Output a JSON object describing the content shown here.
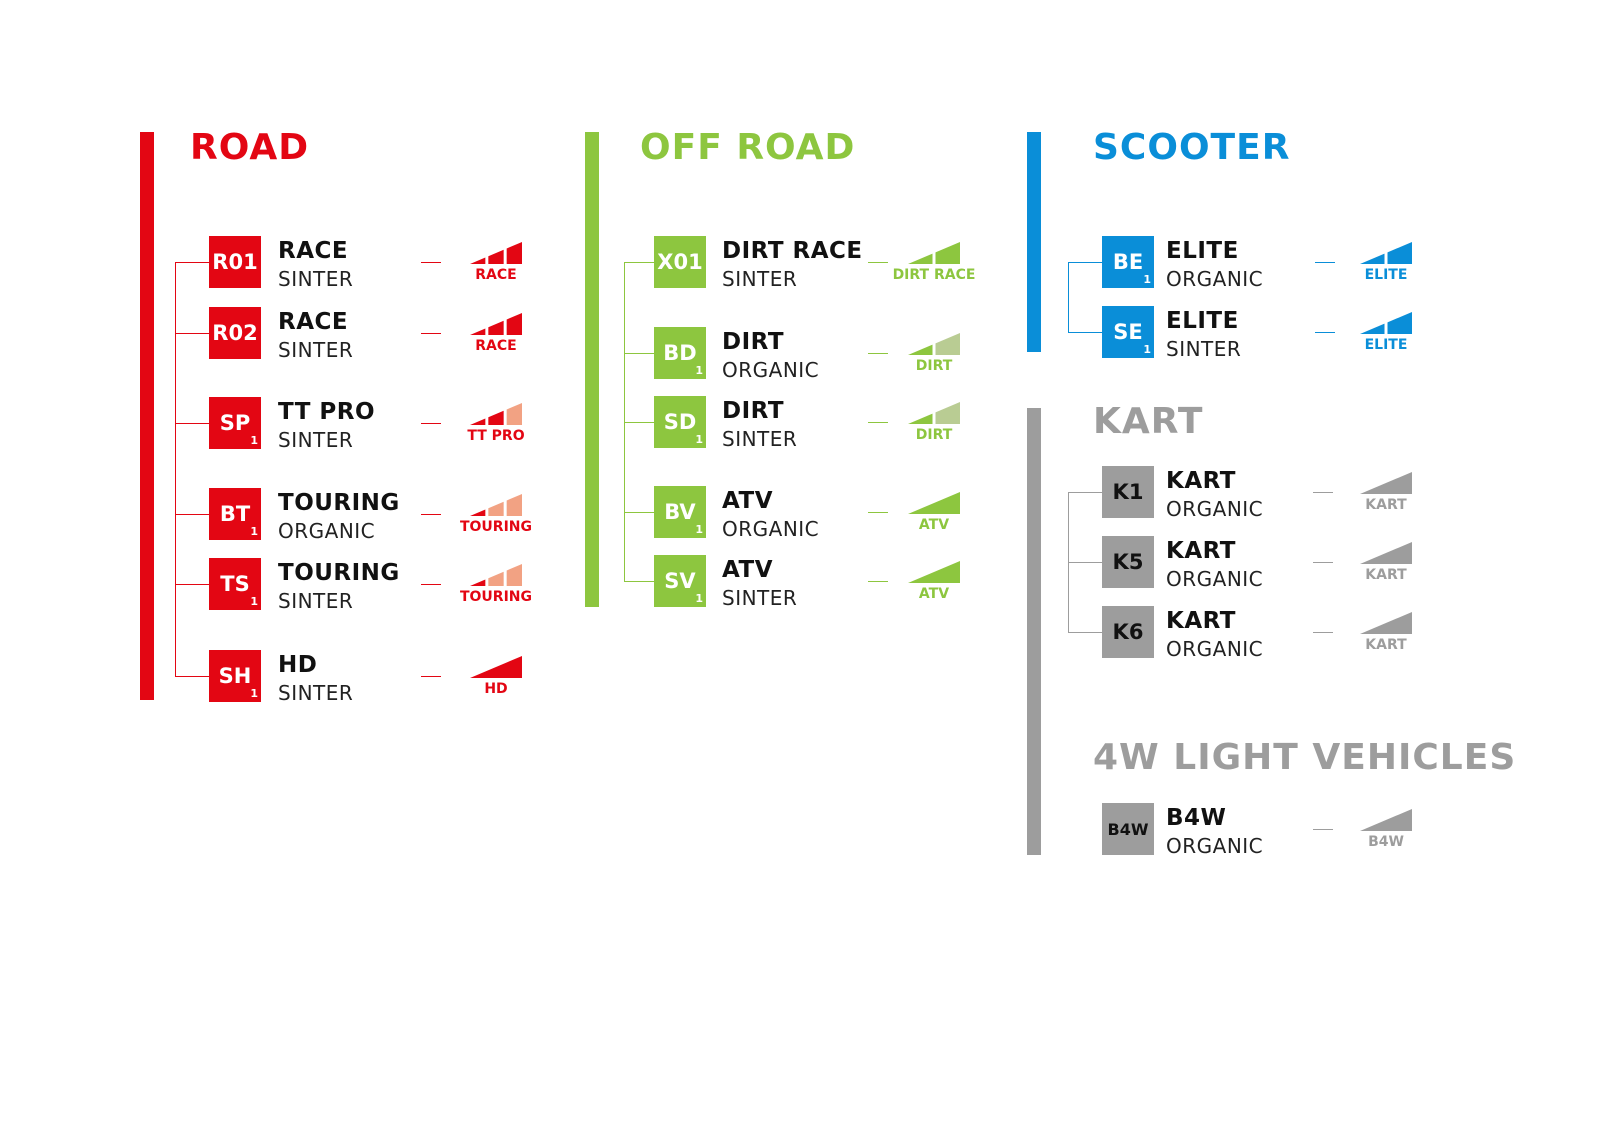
{
  "colors": {
    "road": "#e30613",
    "road_light": "#f2a283",
    "offroad": "#8dc63f",
    "offroad_light": "#b9cc93",
    "scooter": "#0a8ed8",
    "kart": "#9d9d9d"
  },
  "sections": [
    {
      "id": "road",
      "title": "ROAD",
      "color": "#e30613",
      "light": "#f2a283",
      "items": [
        {
          "code": "R01",
          "sub": "",
          "name": "RACE",
          "material": "SINTER",
          "level_label": "RACE",
          "segments": 3,
          "filled": 3
        },
        {
          "code": "R02",
          "sub": "",
          "name": "RACE",
          "material": "SINTER",
          "level_label": "RACE",
          "segments": 3,
          "filled": 3
        },
        {
          "code": "SP",
          "sub": "1",
          "name": "TT PRO",
          "material": "SINTER",
          "level_label": "TT PRO",
          "segments": 3,
          "filled": 2
        },
        {
          "code": "BT",
          "sub": "1",
          "name": "TOURING",
          "material": "ORGANIC",
          "level_label": "TOURING",
          "segments": 3,
          "filled": 1
        },
        {
          "code": "TS",
          "sub": "1",
          "name": "TOURING",
          "material": "SINTER",
          "level_label": "TOURING",
          "segments": 3,
          "filled": 1
        },
        {
          "code": "SH",
          "sub": "1",
          "name": "HD",
          "material": "SINTER",
          "level_label": "HD",
          "segments": 1,
          "filled": 1
        }
      ]
    },
    {
      "id": "offroad",
      "title": "OFF ROAD",
      "color": "#8dc63f",
      "light": "#b9cc93",
      "items": [
        {
          "code": "X01",
          "sub": "",
          "name": "DIRT RACE",
          "material": "SINTER",
          "level_label": "DIRT RACE",
          "segments": 2,
          "filled": 2
        },
        {
          "code": "BD",
          "sub": "1",
          "name": "DIRT",
          "material": "ORGANIC",
          "level_label": "DIRT",
          "segments": 2,
          "filled": 1
        },
        {
          "code": "SD",
          "sub": "1",
          "name": "DIRT",
          "material": "SINTER",
          "level_label": "DIRT",
          "segments": 2,
          "filled": 1
        },
        {
          "code": "BV",
          "sub": "1",
          "name": "ATV",
          "material": "ORGANIC",
          "level_label": "ATV",
          "segments": 1,
          "filled": 1
        },
        {
          "code": "SV",
          "sub": "1",
          "name": "ATV",
          "material": "SINTER",
          "level_label": "ATV",
          "segments": 1,
          "filled": 1
        }
      ]
    },
    {
      "id": "scooter",
      "title": "SCOOTER",
      "color": "#0a8ed8",
      "light": "#0a8ed8",
      "items": [
        {
          "code": "BE",
          "sub": "1",
          "name": "ELITE",
          "material": "ORGANIC",
          "level_label": "ELITE",
          "segments": 2,
          "filled": 2
        },
        {
          "code": "SE",
          "sub": "1",
          "name": "ELITE",
          "material": "SINTER",
          "level_label": "ELITE",
          "segments": 2,
          "filled": 2
        }
      ]
    },
    {
      "id": "kart",
      "title": "KART",
      "color": "#9d9d9d",
      "light": "#9d9d9d",
      "items": [
        {
          "code": "K1",
          "sub": "",
          "name": "KART",
          "material": "ORGANIC",
          "level_label": "KART",
          "segments": 1,
          "filled": 1
        },
        {
          "code": "K5",
          "sub": "",
          "name": "KART",
          "material": "ORGANIC",
          "level_label": "KART",
          "segments": 1,
          "filled": 1
        },
        {
          "code": "K6",
          "sub": "",
          "name": "KART",
          "material": "ORGANIC",
          "level_label": "KART",
          "segments": 1,
          "filled": 1
        }
      ]
    },
    {
      "id": "light4w",
      "title": "4W LIGHT VEHICLES",
      "color": "#9d9d9d",
      "light": "#9d9d9d",
      "items": [
        {
          "code": "B4W",
          "sub": "",
          "name": "B4W",
          "material": "ORGANIC",
          "level_label": "B4W",
          "segments": 1,
          "filled": 1
        }
      ]
    }
  ]
}
